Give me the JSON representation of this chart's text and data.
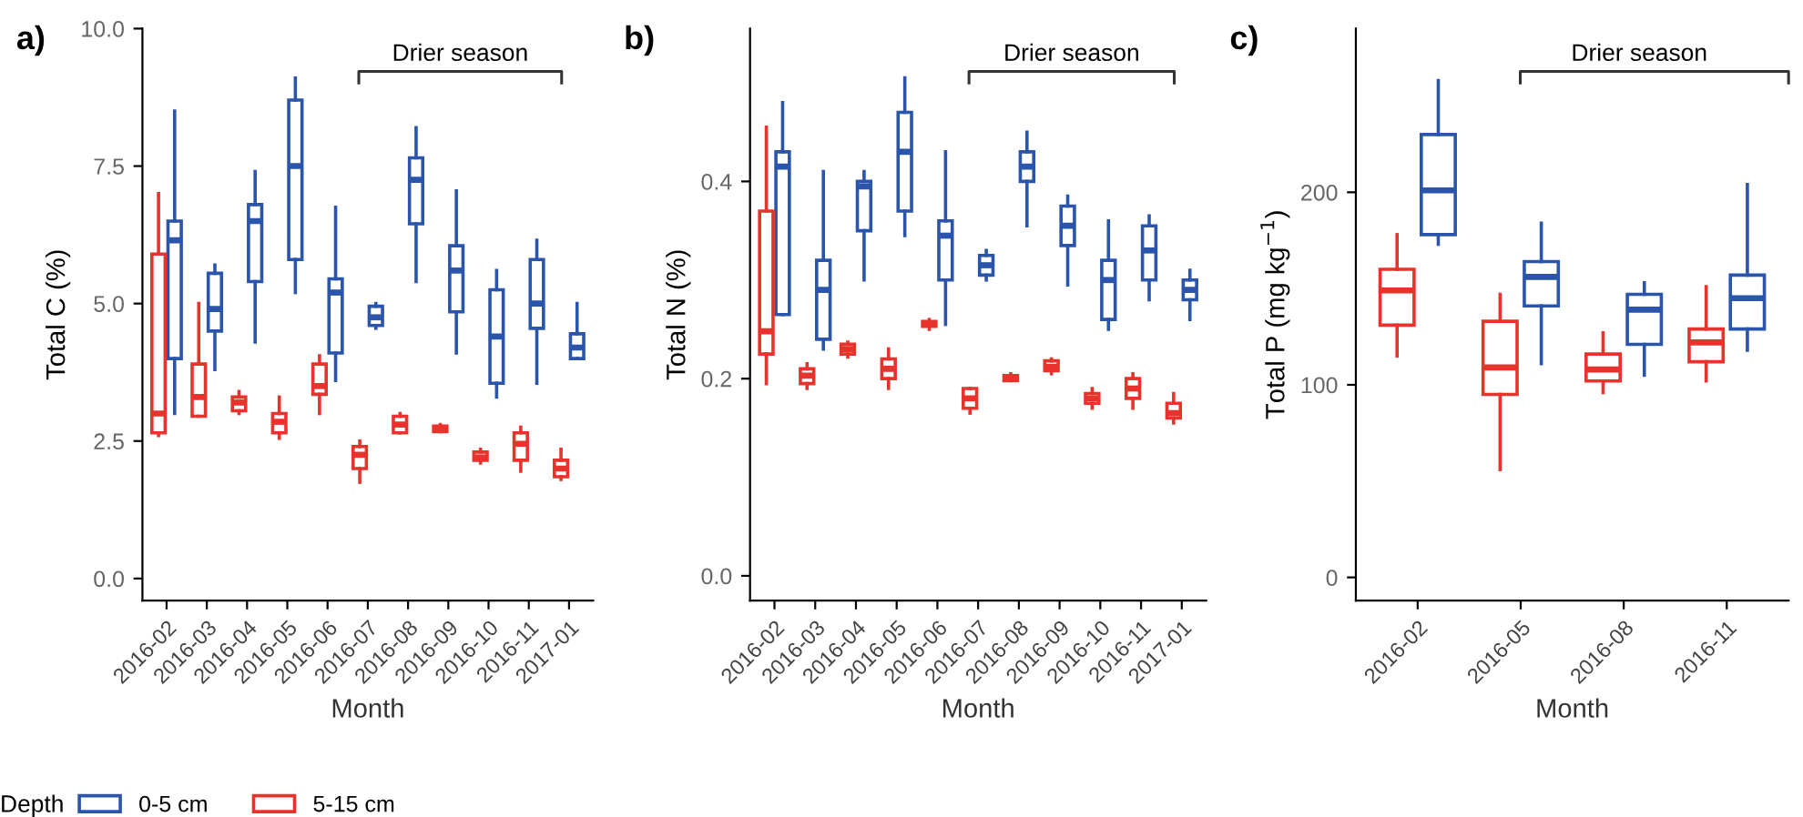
{
  "chart_data": [
    {
      "type": "box",
      "title": "a)",
      "xlabel": "Month",
      "ylabel": "Total C (%)",
      "categories": [
        "2016-02",
        "2016-03",
        "2016-04",
        "2016-05",
        "2016-06",
        "2016-07",
        "2016-08",
        "2016-09",
        "2016-10",
        "2016-11",
        "2017-01"
      ],
      "ylim": [
        -0.4,
        10.0
      ],
      "yticks": [
        {
          "value": 0,
          "label": "0.0"
        },
        2.5,
        {
          "value": 5,
          "label": "5.0"
        },
        7.5,
        {
          "value": 10,
          "label": "10.0"
        }
      ],
      "annotations": [
        "Drier season"
      ],
      "series": [
        {
          "color": "#2a55aa",
          "boxes": [
            {
              "low": 3.0,
              "q1": 4.0,
              "median": 6.15,
              "q3": 6.5,
              "high": 8.5
            },
            {
              "low": 3.8,
              "q1": 4.5,
              "median": 4.9,
              "q3": 5.55,
              "high": 5.7
            },
            {
              "low": 4.3,
              "q1": 5.4,
              "median": 6.5,
              "q3": 6.8,
              "high": 7.4
            },
            {
              "low": 5.2,
              "q1": 5.8,
              "median": 7.5,
              "q3": 8.7,
              "high": 9.1
            },
            {
              "low": 3.6,
              "q1": 4.1,
              "median": 5.2,
              "q3": 5.45,
              "high": 6.75
            },
            {
              "low": 4.55,
              "q1": 4.6,
              "median": 4.75,
              "q3": 4.95,
              "high": 5.0
            },
            {
              "low": 5.4,
              "q1": 6.45,
              "median": 7.25,
              "q3": 7.65,
              "high": 8.2
            },
            {
              "low": 4.1,
              "q1": 4.85,
              "median": 5.6,
              "q3": 6.05,
              "high": 7.05
            },
            {
              "low": 3.3,
              "q1": 3.55,
              "median": 4.4,
              "q3": 5.25,
              "high": 5.6
            },
            {
              "low": 3.55,
              "q1": 4.55,
              "median": 5.0,
              "q3": 5.8,
              "high": 6.15
            },
            {
              "low": 4.0,
              "q1": 4.0,
              "median": 4.2,
              "q3": 4.45,
              "high": 5.0
            }
          ]
        },
        {
          "color": "#e8322c",
          "boxes": [
            {
              "low": 2.6,
              "q1": 2.65,
              "median": 3.0,
              "q3": 5.9,
              "high": 7.0
            },
            {
              "low": 2.95,
              "q1": 2.95,
              "median": 3.3,
              "q3": 3.9,
              "high": 5.0
            },
            {
              "low": 3.0,
              "q1": 3.05,
              "median": 3.2,
              "q3": 3.3,
              "high": 3.4
            },
            {
              "low": 2.55,
              "q1": 2.65,
              "median": 2.85,
              "q3": 3.0,
              "high": 3.3
            },
            {
              "low": 3.0,
              "q1": 3.35,
              "median": 3.5,
              "q3": 3.9,
              "high": 4.05
            },
            {
              "low": 1.75,
              "q1": 2.0,
              "median": 2.25,
              "q3": 2.4,
              "high": 2.5
            },
            {
              "low": 2.65,
              "q1": 2.65,
              "median": 2.8,
              "q3": 2.95,
              "high": 3.0
            },
            {
              "low": 2.67,
              "q1": 2.67,
              "median": 2.72,
              "q3": 2.77,
              "high": 2.8
            },
            {
              "low": 2.1,
              "q1": 2.15,
              "median": 2.2,
              "q3": 2.3,
              "high": 2.35
            },
            {
              "low": 1.95,
              "q1": 2.15,
              "median": 2.45,
              "q3": 2.65,
              "high": 2.75
            },
            {
              "low": 1.8,
              "q1": 1.85,
              "median": 2.0,
              "q3": 2.15,
              "high": 2.35
            }
          ]
        }
      ],
      "legend": false,
      "grid": false
    },
    {
      "type": "box",
      "title": "b)",
      "xlabel": "Month",
      "ylabel": "Total N (%)",
      "legend_title": "Depth",
      "categories": [
        "2016-02",
        "2016-03",
        "2016-04",
        "2016-05",
        "2016-06",
        "2016-07",
        "2016-08",
        "2016-09",
        "2016-10",
        "2016-11",
        "2017-01"
      ],
      "ylim": [
        -0.025,
        0.555
      ],
      "yticks": [
        {
          "value": 0,
          "label": "0.0"
        },
        0.2,
        0.4
      ],
      "annotations": [
        "Drier season"
      ],
      "series": [
        {
          "name": "0-5 cm",
          "color": "#2a55aa",
          "boxes": [
            {
              "low": 0.265,
              "q1": 0.265,
              "median": 0.415,
              "q3": 0.43,
              "high": 0.48
            },
            {
              "low": 0.23,
              "q1": 0.24,
              "median": 0.29,
              "q3": 0.32,
              "high": 0.41
            },
            {
              "low": 0.3,
              "q1": 0.35,
              "median": 0.395,
              "q3": 0.4,
              "high": 0.41
            },
            {
              "low": 0.345,
              "q1": 0.37,
              "median": 0.43,
              "q3": 0.47,
              "high": 0.505
            },
            {
              "low": 0.255,
              "q1": 0.3,
              "median": 0.345,
              "q3": 0.36,
              "high": 0.43
            },
            {
              "low": 0.3,
              "q1": 0.305,
              "median": 0.315,
              "q3": 0.325,
              "high": 0.33
            },
            {
              "low": 0.355,
              "q1": 0.4,
              "median": 0.415,
              "q3": 0.43,
              "high": 0.45
            },
            {
              "low": 0.295,
              "q1": 0.335,
              "median": 0.355,
              "q3": 0.375,
              "high": 0.385
            },
            {
              "low": 0.25,
              "q1": 0.26,
              "median": 0.3,
              "q3": 0.32,
              "high": 0.36
            },
            {
              "low": 0.28,
              "q1": 0.3,
              "median": 0.33,
              "q3": 0.355,
              "high": 0.365
            },
            {
              "low": 0.26,
              "q1": 0.28,
              "median": 0.29,
              "q3": 0.3,
              "high": 0.31
            }
          ]
        },
        {
          "name": "5-15 cm",
          "color": "#e8322c",
          "boxes": [
            {
              "low": 0.195,
              "q1": 0.225,
              "median": 0.248,
              "q3": 0.37,
              "high": 0.455
            },
            {
              "low": 0.19,
              "q1": 0.195,
              "median": 0.203,
              "q3": 0.21,
              "high": 0.215
            },
            {
              "low": 0.222,
              "q1": 0.225,
              "median": 0.23,
              "q3": 0.235,
              "high": 0.237
            },
            {
              "low": 0.19,
              "q1": 0.2,
              "median": 0.21,
              "q3": 0.22,
              "high": 0.23
            },
            {
              "low": 0.25,
              "q1": 0.253,
              "median": 0.255,
              "q3": 0.258,
              "high": 0.26
            },
            {
              "low": 0.165,
              "q1": 0.17,
              "median": 0.18,
              "q3": 0.19,
              "high": 0.19
            },
            {
              "low": 0.198,
              "q1": 0.198,
              "median": 0.2,
              "q3": 0.203,
              "high": 0.205
            },
            {
              "low": 0.205,
              "q1": 0.208,
              "median": 0.212,
              "q3": 0.218,
              "high": 0.22
            },
            {
              "low": 0.17,
              "q1": 0.175,
              "median": 0.18,
              "q3": 0.185,
              "high": 0.19
            },
            {
              "low": 0.17,
              "q1": 0.18,
              "median": 0.19,
              "q3": 0.2,
              "high": 0.205
            },
            {
              "low": 0.155,
              "q1": 0.16,
              "median": 0.165,
              "q3": 0.175,
              "high": 0.185
            }
          ]
        }
      ],
      "legend": "bottom",
      "grid": false
    },
    {
      "type": "box",
      "title": "c)",
      "xlabel": "Month",
      "ylabel": "Total P (mg kg$^{−1}$)",
      "categories": [
        "2016-02",
        "2016-05",
        "2016-08",
        "2016-11"
      ],
      "ylim": [
        -12,
        285
      ],
      "yticks": [
        0,
        100,
        200
      ],
      "annotations": [
        "Drier season"
      ],
      "series": [
        {
          "color": "#2a55aa",
          "boxes": [
            {
              "low": 173,
              "q1": 178,
              "median": 201,
              "q3": 230,
              "high": 258
            },
            {
              "low": 111,
              "q1": 141,
              "median": 156,
              "q3": 164,
              "high": 184
            },
            {
              "low": 105,
              "q1": 121,
              "median": 139,
              "q3": 147,
              "high": 153
            },
            {
              "low": 118,
              "q1": 129,
              "median": 145,
              "q3": 157,
              "high": 204
            }
          ]
        },
        {
          "color": "#e8322c",
          "boxes": [
            {
              "low": 115,
              "q1": 131,
              "median": 149,
              "q3": 160,
              "high": 178
            },
            {
              "low": 56,
              "q1": 95,
              "median": 109,
              "q3": 133,
              "high": 147
            },
            {
              "low": 96,
              "q1": 102,
              "median": 108,
              "q3": 116,
              "high": 127
            },
            {
              "low": 102,
              "q1": 112,
              "median": 122,
              "q3": 129,
              "high": 151
            }
          ]
        }
      ],
      "legend": false,
      "grid": false
    }
  ]
}
